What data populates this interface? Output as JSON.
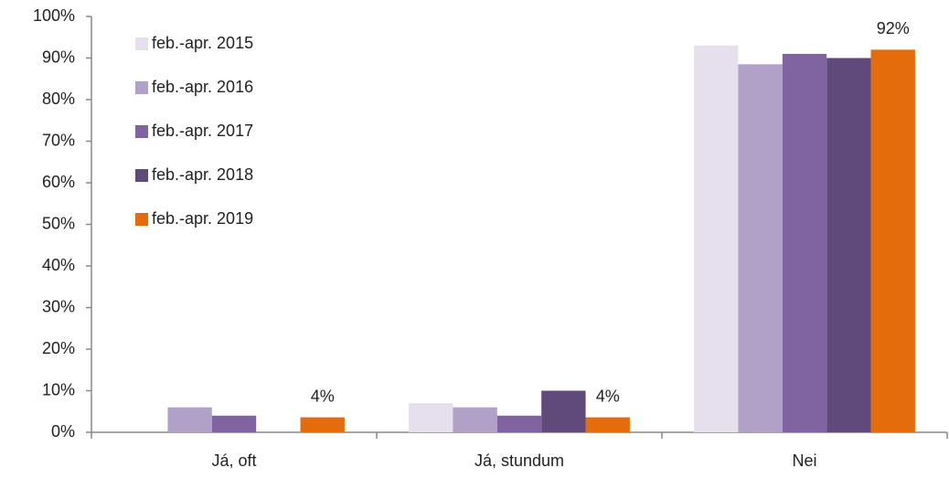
{
  "chart_data": {
    "type": "bar",
    "categories": [
      "Já, oft",
      "Já, stundum",
      "Nei"
    ],
    "series": [
      {
        "name": "feb.-apr. 2015",
        "color": "#e6e0ee",
        "values": [
          0,
          7,
          93
        ]
      },
      {
        "name": "feb.-apr. 2016",
        "color": "#b1a1c8",
        "values": [
          6,
          6,
          88.5
        ]
      },
      {
        "name": "feb.-apr. 2017",
        "color": "#8064a2",
        "values": [
          4,
          4,
          91
        ]
      },
      {
        "name": "feb.-apr. 2018",
        "color": "#604a7b",
        "values": [
          0,
          10,
          90
        ]
      },
      {
        "name": "feb.-apr. 2019",
        "color": "#e46c0a",
        "values": [
          3.6,
          3.6,
          92
        ],
        "value_labels": [
          "4%",
          "4%",
          "92%"
        ]
      }
    ],
    "ylim": [
      0,
      100
    ],
    "yticks": [
      {
        "value": 0,
        "label": "0%"
      },
      {
        "value": 10,
        "label": "10%"
      },
      {
        "value": 20,
        "label": "20%"
      },
      {
        "value": 30,
        "label": "30%"
      },
      {
        "value": 40,
        "label": "40%"
      },
      {
        "value": 50,
        "label": "50%"
      },
      {
        "value": 60,
        "label": "60%"
      },
      {
        "value": 70,
        "label": "70%"
      },
      {
        "value": 80,
        "label": "80%"
      },
      {
        "value": 90,
        "label": "90%"
      },
      {
        "value": 100,
        "label": "100%"
      }
    ],
    "legend": "top-left"
  }
}
